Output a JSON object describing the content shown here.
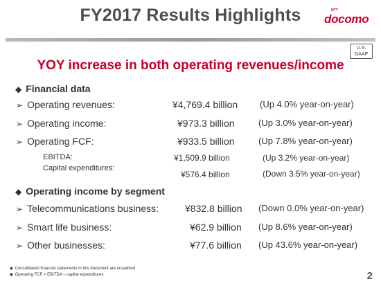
{
  "slide": {
    "title": "FY2017 Results Highlights",
    "brand": {
      "small": "NTT",
      "name": "docomo"
    },
    "gaap": [
      "U.S.",
      "GAAP"
    ],
    "headline": "YOY increase in both operating revenues/income",
    "page_number": "2"
  },
  "financial": {
    "heading": "Financial data",
    "rows": [
      {
        "label": "Operating revenues:",
        "value": "¥4,769.4 billion",
        "change": "(Up   4.0% year-on-year)"
      },
      {
        "label": "Operating income:",
        "value": "¥973.3 billion",
        "change": "(Up   3.0% year-on-year)"
      },
      {
        "label": "Operating FCF:",
        "value": "¥933.5 billion",
        "change": "(Up   7.8% year-on-year)"
      }
    ],
    "sub_rows": [
      {
        "label": "EBITDA:",
        "value": "¥1,509.9 billion",
        "change": "(Up       3.2% year-on-year)"
      },
      {
        "label": "Capital expenditures:",
        "value": "¥576.4 billion",
        "change": "(Down 3.5% year-on-year)"
      }
    ]
  },
  "segment": {
    "heading": "Operating income by segment",
    "rows": [
      {
        "label": "Telecommunications business:",
        "value": "¥832.8 billion",
        "change": "(Down   0.0% year-on-year)"
      },
      {
        "label": "Smart life business:",
        "value": "¥62.9 billion",
        "change": "(Up       8.6% year-on-year)"
      },
      {
        "label": "Other businesses:",
        "value": "¥77.6 billion",
        "change": "(Up     43.6% year-on-year)"
      }
    ]
  },
  "notes": [
    "Consolidated financial statements in this document are unaudited",
    "Operating FCF = EBITDA – capital expenditures"
  ],
  "icons": {
    "section_bullet": "diamond-icon",
    "row_bullet": "arrow-bullet-icon"
  }
}
